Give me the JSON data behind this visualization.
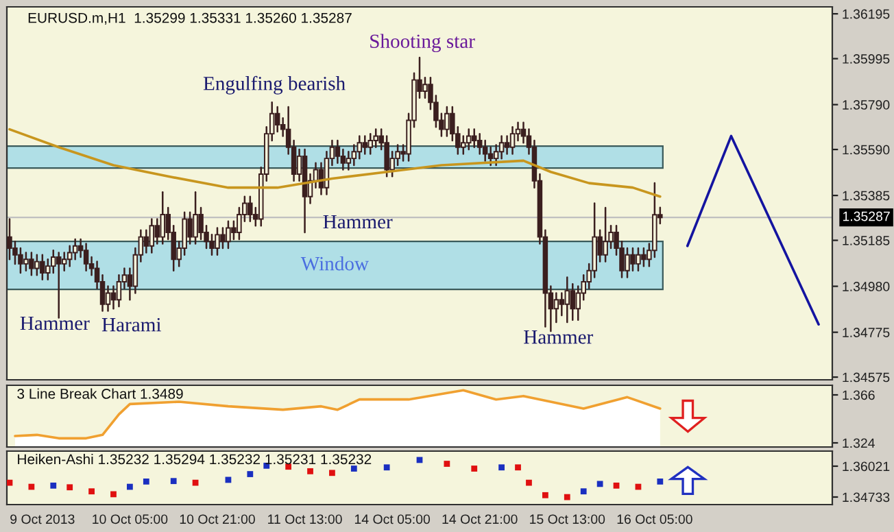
{
  "chart_data": [
    {
      "type": "candlestick",
      "title": "EURUSD.m,H1  1.35299 1.35331 1.35260 1.35287",
      "color": "#3b1f1f",
      "ohlc": [
        [
          1.352,
          1.3528,
          1.351,
          1.3515
        ],
        [
          1.3515,
          1.3518,
          1.3508,
          1.3512
        ],
        [
          1.3512,
          1.3515,
          1.3504,
          1.3508
        ],
        [
          1.3508,
          1.3513,
          1.3505,
          1.351
        ],
        [
          1.351,
          1.3513,
          1.3503,
          1.3506
        ],
        [
          1.3506,
          1.3512,
          1.3503,
          1.3509
        ],
        [
          1.3509,
          1.3512,
          1.3501,
          1.3504
        ],
        [
          1.3504,
          1.351,
          1.3501,
          1.3507
        ],
        [
          1.3507,
          1.3514,
          1.3504,
          1.3511
        ],
        [
          1.3511,
          1.3513,
          1.3484,
          1.3508
        ],
        [
          1.3508,
          1.3513,
          1.3505,
          1.351
        ],
        [
          1.351,
          1.3516,
          1.3507,
          1.3513
        ],
        [
          1.3513,
          1.3519,
          1.351,
          1.3516
        ],
        [
          1.3516,
          1.3519,
          1.3511,
          1.3514
        ],
        [
          1.3514,
          1.3517,
          1.3505,
          1.3508
        ],
        [
          1.3508,
          1.3511,
          1.3503,
          1.3506
        ],
        [
          1.3506,
          1.3509,
          1.3497,
          1.35
        ],
        [
          1.35,
          1.3503,
          1.3487,
          1.349
        ],
        [
          1.349,
          1.3498,
          1.3487,
          1.3495
        ],
        [
          1.3495,
          1.3498,
          1.3488,
          1.3492
        ],
        [
          1.3492,
          1.3503,
          1.3489,
          1.35
        ],
        [
          1.35,
          1.3506,
          1.3497,
          1.3503
        ],
        [
          1.3503,
          1.3506,
          1.3492,
          1.3498
        ],
        [
          1.3498,
          1.3515,
          1.3495,
          1.3512
        ],
        [
          1.3512,
          1.3523,
          1.3509,
          1.352
        ],
        [
          1.352,
          1.3523,
          1.3513,
          1.3516
        ],
        [
          1.3516,
          1.3528,
          1.3513,
          1.3525
        ],
        [
          1.3525,
          1.3528,
          1.3517,
          1.352
        ],
        [
          1.352,
          1.354,
          1.3517,
          1.353
        ],
        [
          1.353,
          1.3533,
          1.3519,
          1.3522
        ],
        [
          1.3522,
          1.3525,
          1.3505,
          1.351
        ],
        [
          1.351,
          1.3518,
          1.3507,
          1.3515
        ],
        [
          1.3515,
          1.3531,
          1.3512,
          1.3528
        ],
        [
          1.3528,
          1.3531,
          1.3517,
          1.352
        ],
        [
          1.352,
          1.354,
          1.3517,
          1.353
        ],
        [
          1.353,
          1.3533,
          1.3519,
          1.3522
        ],
        [
          1.3522,
          1.3525,
          1.3515,
          1.3518
        ],
        [
          1.3518,
          1.3521,
          1.3512,
          1.3515
        ],
        [
          1.3515,
          1.3524,
          1.3512,
          1.3521
        ],
        [
          1.3521,
          1.3524,
          1.3515,
          1.3518
        ],
        [
          1.3518,
          1.3527,
          1.3515,
          1.3524
        ],
        [
          1.3524,
          1.3527,
          1.3519,
          1.3522
        ],
        [
          1.3522,
          1.3533,
          1.3519,
          1.353
        ],
        [
          1.353,
          1.3538,
          1.3527,
          1.3535
        ],
        [
          1.3535,
          1.3538,
          1.3527,
          1.353
        ],
        [
          1.353,
          1.3533,
          1.3525,
          1.3528
        ],
        [
          1.3528,
          1.3551,
          1.3525,
          1.3548
        ],
        [
          1.3548,
          1.3569,
          1.3545,
          1.3566
        ],
        [
          1.3566,
          1.358,
          1.3563,
          1.3575
        ],
        [
          1.3575,
          1.3578,
          1.3567,
          1.357
        ],
        [
          1.357,
          1.3573,
          1.3565,
          1.3568
        ],
        [
          1.3568,
          1.3578,
          1.3557,
          1.356
        ],
        [
          1.356,
          1.3563,
          1.3545,
          1.3548
        ],
        [
          1.3548,
          1.3559,
          1.3545,
          1.3556
        ],
        [
          1.3556,
          1.3559,
          1.3522,
          1.3538
        ],
        [
          1.3538,
          1.3548,
          1.3535,
          1.3545
        ],
        [
          1.3545,
          1.3553,
          1.3542,
          1.355
        ],
        [
          1.355,
          1.3553,
          1.3539,
          1.3542
        ],
        [
          1.3542,
          1.3558,
          1.3539,
          1.3555
        ],
        [
          1.3555,
          1.3563,
          1.3552,
          1.356
        ],
        [
          1.356,
          1.3563,
          1.3553,
          1.3556
        ],
        [
          1.3556,
          1.3559,
          1.355,
          1.3553
        ],
        [
          1.3553,
          1.3558,
          1.355,
          1.3555
        ],
        [
          1.3555,
          1.3561,
          1.3552,
          1.3558
        ],
        [
          1.3558,
          1.3565,
          1.3555,
          1.3562
        ],
        [
          1.3562,
          1.3565,
          1.3557,
          1.356
        ],
        [
          1.356,
          1.3566,
          1.3557,
          1.3563
        ],
        [
          1.3563,
          1.3568,
          1.356,
          1.3565
        ],
        [
          1.3565,
          1.3568,
          1.3559,
          1.3562
        ],
        [
          1.3562,
          1.3565,
          1.3547,
          1.355
        ],
        [
          1.355,
          1.3558,
          1.3547,
          1.3555
        ],
        [
          1.3555,
          1.3561,
          1.3552,
          1.3558
        ],
        [
          1.3558,
          1.3561,
          1.3554,
          1.3557
        ],
        [
          1.3557,
          1.3575,
          1.3554,
          1.3572
        ],
        [
          1.3572,
          1.3593,
          1.3569,
          1.359
        ],
        [
          1.359,
          1.36,
          1.3582,
          1.3585
        ],
        [
          1.3585,
          1.3591,
          1.3582,
          1.3588
        ],
        [
          1.3588,
          1.3591,
          1.3577,
          1.358
        ],
        [
          1.358,
          1.3583,
          1.3569,
          1.3572
        ],
        [
          1.3572,
          1.3575,
          1.3565,
          1.3568
        ],
        [
          1.3568,
          1.3578,
          1.3565,
          1.3575
        ],
        [
          1.3575,
          1.3578,
          1.3563,
          1.3566
        ],
        [
          1.3566,
          1.3569,
          1.3557,
          1.356
        ],
        [
          1.356,
          1.3565,
          1.3557,
          1.3562
        ],
        [
          1.3562,
          1.3568,
          1.3559,
          1.3565
        ],
        [
          1.3565,
          1.3568,
          1.356,
          1.3563
        ],
        [
          1.3563,
          1.3566,
          1.3557,
          1.356
        ],
        [
          1.356,
          1.3563,
          1.3554,
          1.3557
        ],
        [
          1.3557,
          1.356,
          1.3552,
          1.3555
        ],
        [
          1.3555,
          1.3561,
          1.3552,
          1.3558
        ],
        [
          1.3558,
          1.3565,
          1.3555,
          1.3562
        ],
        [
          1.3562,
          1.3565,
          1.3557,
          1.356
        ],
        [
          1.356,
          1.3569,
          1.3557,
          1.3566
        ],
        [
          1.3566,
          1.3571,
          1.3563,
          1.3568
        ],
        [
          1.3568,
          1.3571,
          1.3562,
          1.3565
        ],
        [
          1.3565,
          1.3568,
          1.3557,
          1.356
        ],
        [
          1.356,
          1.3563,
          1.3542,
          1.3545
        ],
        [
          1.3545,
          1.3548,
          1.3517,
          1.352
        ],
        [
          1.352,
          1.3523,
          1.348,
          1.3495
        ],
        [
          1.3495,
          1.3498,
          1.3478,
          1.3488
        ],
        [
          1.3488,
          1.3495,
          1.3482,
          1.3492
        ],
        [
          1.3492,
          1.3495,
          1.3485,
          1.349
        ],
        [
          1.349,
          1.3502,
          1.3482,
          1.3496
        ],
        [
          1.3496,
          1.3499,
          1.3483,
          1.3488
        ],
        [
          1.3488,
          1.3498,
          1.3483,
          1.3495
        ],
        [
          1.3495,
          1.3503,
          1.3492,
          1.35
        ],
        [
          1.35,
          1.3508,
          1.3497,
          1.3505
        ],
        [
          1.3505,
          1.3535,
          1.3502,
          1.352
        ],
        [
          1.352,
          1.3523,
          1.3509,
          1.3512
        ],
        [
          1.3512,
          1.3533,
          1.3509,
          1.3518
        ],
        [
          1.3518,
          1.3525,
          1.3515,
          1.3522
        ],
        [
          1.3522,
          1.3525,
          1.3512,
          1.3515
        ],
        [
          1.3515,
          1.3518,
          1.3502,
          1.3505
        ],
        [
          1.3505,
          1.3515,
          1.3502,
          1.3512
        ],
        [
          1.3512,
          1.3515,
          1.3505,
          1.3508
        ],
        [
          1.3508,
          1.3515,
          1.3505,
          1.3512
        ],
        [
          1.3512,
          1.3515,
          1.3507,
          1.351
        ],
        [
          1.351,
          1.3517,
          1.3507,
          1.3514
        ],
        [
          1.3514,
          1.3544,
          1.3511,
          1.35299
        ],
        [
          1.35299,
          1.35331,
          1.3526,
          1.35287
        ],
        null,
        null,
        null,
        null,
        null,
        null,
        null,
        null,
        null,
        null,
        null,
        null,
        null,
        null,
        null,
        null,
        null,
        null,
        null,
        null,
        null,
        null,
        null,
        null,
        null,
        null,
        null,
        null,
        null,
        null,
        null
      ],
      "series": [
        {
          "type": "line",
          "color": "#c8961e",
          "values": [
            1.3568,
            null,
            null,
            null,
            null,
            null,
            null,
            null,
            null,
            1.356,
            null,
            null,
            null,
            null,
            null,
            null,
            null,
            null,
            null,
            1.3552,
            null,
            null,
            null,
            null,
            null,
            null,
            null,
            null,
            null,
            1.3547,
            null,
            null,
            null,
            null,
            null,
            null,
            null,
            null,
            null,
            null,
            1.3542,
            null,
            null,
            null,
            null,
            null,
            null,
            null,
            null,
            1.3542,
            null,
            null,
            null,
            null,
            null,
            null,
            null,
            null,
            null,
            1.3546,
            null,
            null,
            null,
            null,
            null,
            null,
            null,
            null,
            null,
            1.3549,
            null,
            null,
            null,
            null,
            null,
            null,
            null,
            null,
            null,
            1.3552,
            null,
            null,
            null,
            null,
            null,
            null,
            null,
            null,
            null,
            null,
            null,
            null,
            null,
            null,
            1.3554,
            null,
            null,
            null,
            null,
            1.3549,
            null,
            null,
            null,
            null,
            null,
            null,
            1.3544,
            null,
            null,
            null,
            null,
            null,
            null,
            null,
            1.3542,
            null,
            null,
            null,
            null,
            1.3538,
            null,
            null,
            null,
            null,
            null,
            null,
            null,
            null,
            null,
            null,
            null,
            null,
            null,
            null,
            null,
            null,
            null,
            null,
            null,
            null,
            null,
            null,
            null,
            null,
            null,
            null,
            null,
            null,
            null,
            null,
            null
          ]
        },
        {
          "type": "line",
          "color": "#1414a0",
          "values": [
            null,
            null,
            null,
            null,
            null,
            null,
            null,
            null,
            null,
            null,
            null,
            null,
            null,
            null,
            null,
            null,
            null,
            null,
            null,
            null,
            null,
            null,
            null,
            null,
            null,
            null,
            null,
            null,
            null,
            null,
            null,
            null,
            null,
            null,
            null,
            null,
            null,
            null,
            null,
            null,
            null,
            null,
            null,
            null,
            null,
            null,
            null,
            null,
            null,
            null,
            null,
            null,
            null,
            null,
            null,
            null,
            null,
            null,
            null,
            null,
            null,
            null,
            null,
            null,
            null,
            null,
            null,
            null,
            null,
            null,
            null,
            null,
            null,
            null,
            null,
            null,
            null,
            null,
            null,
            null,
            null,
            null,
            null,
            null,
            null,
            null,
            null,
            null,
            null,
            null,
            null,
            null,
            null,
            null,
            null,
            null,
            null,
            null,
            null,
            null,
            null,
            null,
            null,
            null,
            null,
            null,
            null,
            null,
            null,
            null,
            null,
            null,
            null,
            null,
            null,
            null,
            null,
            null,
            null,
            null,
            null,
            null,
            null,
            null,
            1.3516,
            null,
            null,
            null,
            null,
            null,
            null,
            null,
            1.3565,
            null,
            null,
            null,
            null,
            null,
            null,
            null,
            null,
            null,
            null,
            null,
            null,
            null,
            null,
            null,
            1.3481,
            null,
            null
          ]
        }
      ],
      "annotations": [
        "Hammer",
        "Harami",
        "Engulfing bearish",
        "Hammer",
        "Shooting star",
        "Hammer"
      ],
      "bands": [
        {
          "axis": "y",
          "from": 1.35507,
          "to": 1.35605,
          "color": "#b0dfe6"
        },
        {
          "axis": "y",
          "from": 1.34966,
          "to": 1.3518,
          "color": "#b0dfe6",
          "label": "Window"
        }
      ],
      "ref_lines": [
        {
          "axis": "y",
          "value": 1.35287,
          "label": "1.35287",
          "color": "#c0c0c0"
        }
      ],
      "ylim": [
        1.34563,
        1.36226
      ],
      "yticks": [
        1.34575,
        1.34775,
        {
          "value": 1.3498,
          "label": "1.34980"
        },
        1.35185,
        1.35385,
        {
          "value": 1.3559,
          "label": "1.35590"
        },
        {
          "value": 1.3579,
          "label": "1.35790"
        },
        1.35995,
        1.36195
      ],
      "tick_labels": "y"
    },
    {
      "type": "area",
      "annotations": [
        "3 Line Break Chart 1.3489"
      ],
      "series": [
        {
          "color": "#f0a030",
          "values": [
            null,
            1.33,
            null,
            null,
            null,
            1.331,
            null,
            null,
            null,
            1.328,
            null,
            null,
            null,
            null,
            1.328,
            null,
            null,
            1.331,
            null,
            null,
            1.349,
            null,
            1.358,
            null,
            null,
            null,
            null,
            null,
            null,
            null,
            null,
            1.36,
            null,
            null,
            null,
            null,
            null,
            null,
            null,
            null,
            1.356,
            null,
            null,
            null,
            null,
            null,
            null,
            null,
            null,
            null,
            1.353,
            null,
            null,
            null,
            null,
            null,
            null,
            1.356,
            null,
            null,
            1.353,
            null,
            null,
            null,
            1.362,
            null,
            null,
            null,
            null,
            null,
            null,
            null,
            null,
            1.362,
            null,
            null,
            null,
            null,
            null,
            null,
            null,
            null,
            null,
            1.37,
            null,
            null,
            null,
            null,
            null,
            1.362,
            null,
            null,
            null,
            null,
            1.365,
            null,
            null,
            null,
            null,
            null,
            null,
            null,
            null,
            null,
            null,
            1.354,
            null,
            null,
            null,
            null,
            null,
            null,
            null,
            1.364,
            null,
            null,
            null,
            null,
            null,
            1.354,
            null,
            null,
            null,
            null,
            null,
            null,
            null,
            null,
            null,
            null,
            null,
            null,
            null,
            null,
            null,
            null,
            null,
            null,
            null,
            null,
            null,
            null,
            null,
            null,
            null,
            null,
            null,
            null,
            null,
            null,
            null
          ]
        }
      ],
      "ylim": [
        1.3204,
        1.3744
      ],
      "yticks": [
        1.324,
        1.366
      ],
      "tick_labels": "y"
    },
    {
      "type": "scatter",
      "marker": "square",
      "annotations": [
        "Heiken-Ashi 1.35232 1.35294 1.35232 1.35231 1.35232"
      ],
      "categories": [
        null,
        null,
        null,
        null,
        null,
        null,
        "9 Oct 2013",
        null,
        null,
        null,
        null,
        null,
        null,
        null,
        null,
        null,
        null,
        null,
        null,
        null,
        null,
        null,
        "10 Oct 05:00",
        null,
        null,
        null,
        null,
        null,
        null,
        null,
        null,
        null,
        null,
        null,
        null,
        null,
        null,
        null,
        "10 Oct 21:00",
        null,
        null,
        null,
        null,
        null,
        null,
        null,
        null,
        null,
        null,
        null,
        null,
        null,
        null,
        null,
        "11 Oct 13:00",
        null,
        null,
        null,
        null,
        null,
        null,
        null,
        null,
        null,
        null,
        null,
        null,
        null,
        null,
        null,
        "14 Oct 05:00",
        null,
        null,
        null,
        null,
        null,
        null,
        null,
        null,
        null,
        null,
        null,
        null,
        null,
        null,
        null,
        "14 Oct 21:00",
        null,
        null,
        null,
        null,
        null,
        null,
        null,
        null,
        null,
        null,
        null,
        null,
        null,
        null,
        null,
        "15 Oct 13:00",
        null,
        null,
        null,
        null,
        null,
        null,
        null,
        null,
        null,
        null,
        null,
        null,
        null,
        null,
        null,
        "16 Oct 05:00",
        null,
        null,
        null,
        null,
        null,
        null,
        null,
        null,
        null,
        null,
        null,
        null,
        null,
        null,
        null,
        null,
        null,
        null,
        null,
        null,
        null,
        null,
        null,
        null,
        null,
        null,
        null,
        null,
        null,
        null,
        null,
        null
      ],
      "series": [
        {
          "color": "#e01010",
          "values": [
            1.3533,
            null,
            null,
            null,
            1.3516,
            null,
            null,
            null,
            null,
            null,
            null,
            1.3514,
            null,
            null,
            null,
            1.3497,
            null,
            null,
            null,
            1.3485,
            null,
            null,
            null,
            null,
            null,
            null,
            null,
            null,
            null,
            null,
            null,
            null,
            null,
            null,
            1.3533,
            null,
            null,
            null,
            null,
            null,
            null,
            null,
            null,
            null,
            null,
            null,
            null,
            null,
            null,
            null,
            null,
            1.36,
            null,
            null,
            null,
            1.3581,
            null,
            null,
            null,
            1.3574,
            null,
            null,
            null,
            null,
            null,
            null,
            null,
            null,
            null,
            null,
            null,
            null,
            null,
            null,
            null,
            null,
            null,
            null,
            null,
            null,
            1.3612,
            null,
            null,
            null,
            null,
            1.3592,
            null,
            null,
            null,
            null,
            null,
            null,
            null,
            1.3597,
            null,
            1.3533,
            null,
            null,
            1.3481,
            null,
            null,
            null,
            1.3473,
            null,
            null,
            null,
            null,
            null,
            null,
            null,
            null,
            1.3521,
            null,
            null,
            null,
            1.3516,
            null,
            null,
            null,
            null,
            null,
            null,
            null,
            null,
            null,
            null,
            null,
            null,
            null,
            null,
            null,
            null,
            null,
            null,
            null,
            null,
            null,
            null,
            null,
            null,
            null,
            null,
            null,
            null,
            null,
            null,
            null,
            null,
            null,
            null,
            null
          ]
        },
        {
          "color": "#1a2fc0",
          "values": [
            null,
            null,
            null,
            null,
            null,
            null,
            null,
            null,
            1.3521,
            null,
            null,
            null,
            null,
            null,
            null,
            null,
            null,
            null,
            null,
            null,
            null,
            null,
            1.3516,
            null,
            null,
            1.3538,
            null,
            null,
            null,
            null,
            1.354,
            null,
            null,
            null,
            null,
            null,
            null,
            null,
            null,
            null,
            1.3545,
            null,
            null,
            null,
            1.3569,
            null,
            null,
            1.3604,
            null,
            null,
            null,
            null,
            null,
            null,
            null,
            null,
            null,
            null,
            null,
            null,
            null,
            null,
            null,
            1.3592,
            null,
            null,
            null,
            null,
            null,
            1.3597,
            null,
            null,
            null,
            null,
            null,
            1.3628,
            null,
            null,
            null,
            null,
            null,
            null,
            null,
            null,
            null,
            null,
            null,
            null,
            null,
            null,
            1.3597,
            null,
            null,
            null,
            null,
            null,
            null,
            null,
            null,
            null,
            null,
            null,
            null,
            null,
            null,
            1.3497,
            null,
            null,
            1.3528,
            null,
            null,
            null,
            null,
            null,
            null,
            null,
            null,
            null,
            null,
            1.3538,
            null,
            null,
            null,
            null,
            null,
            null,
            null,
            null,
            null,
            null,
            null,
            null,
            null,
            null,
            null,
            null,
            null,
            null,
            null,
            null,
            null,
            null,
            null,
            null,
            null,
            null,
            null,
            null,
            null,
            null,
            null
          ]
        }
      ],
      "ylim": [
        1.34418,
        1.3665
      ],
      "yticks": [
        1.34733,
        1.36021
      ]
    }
  ]
}
